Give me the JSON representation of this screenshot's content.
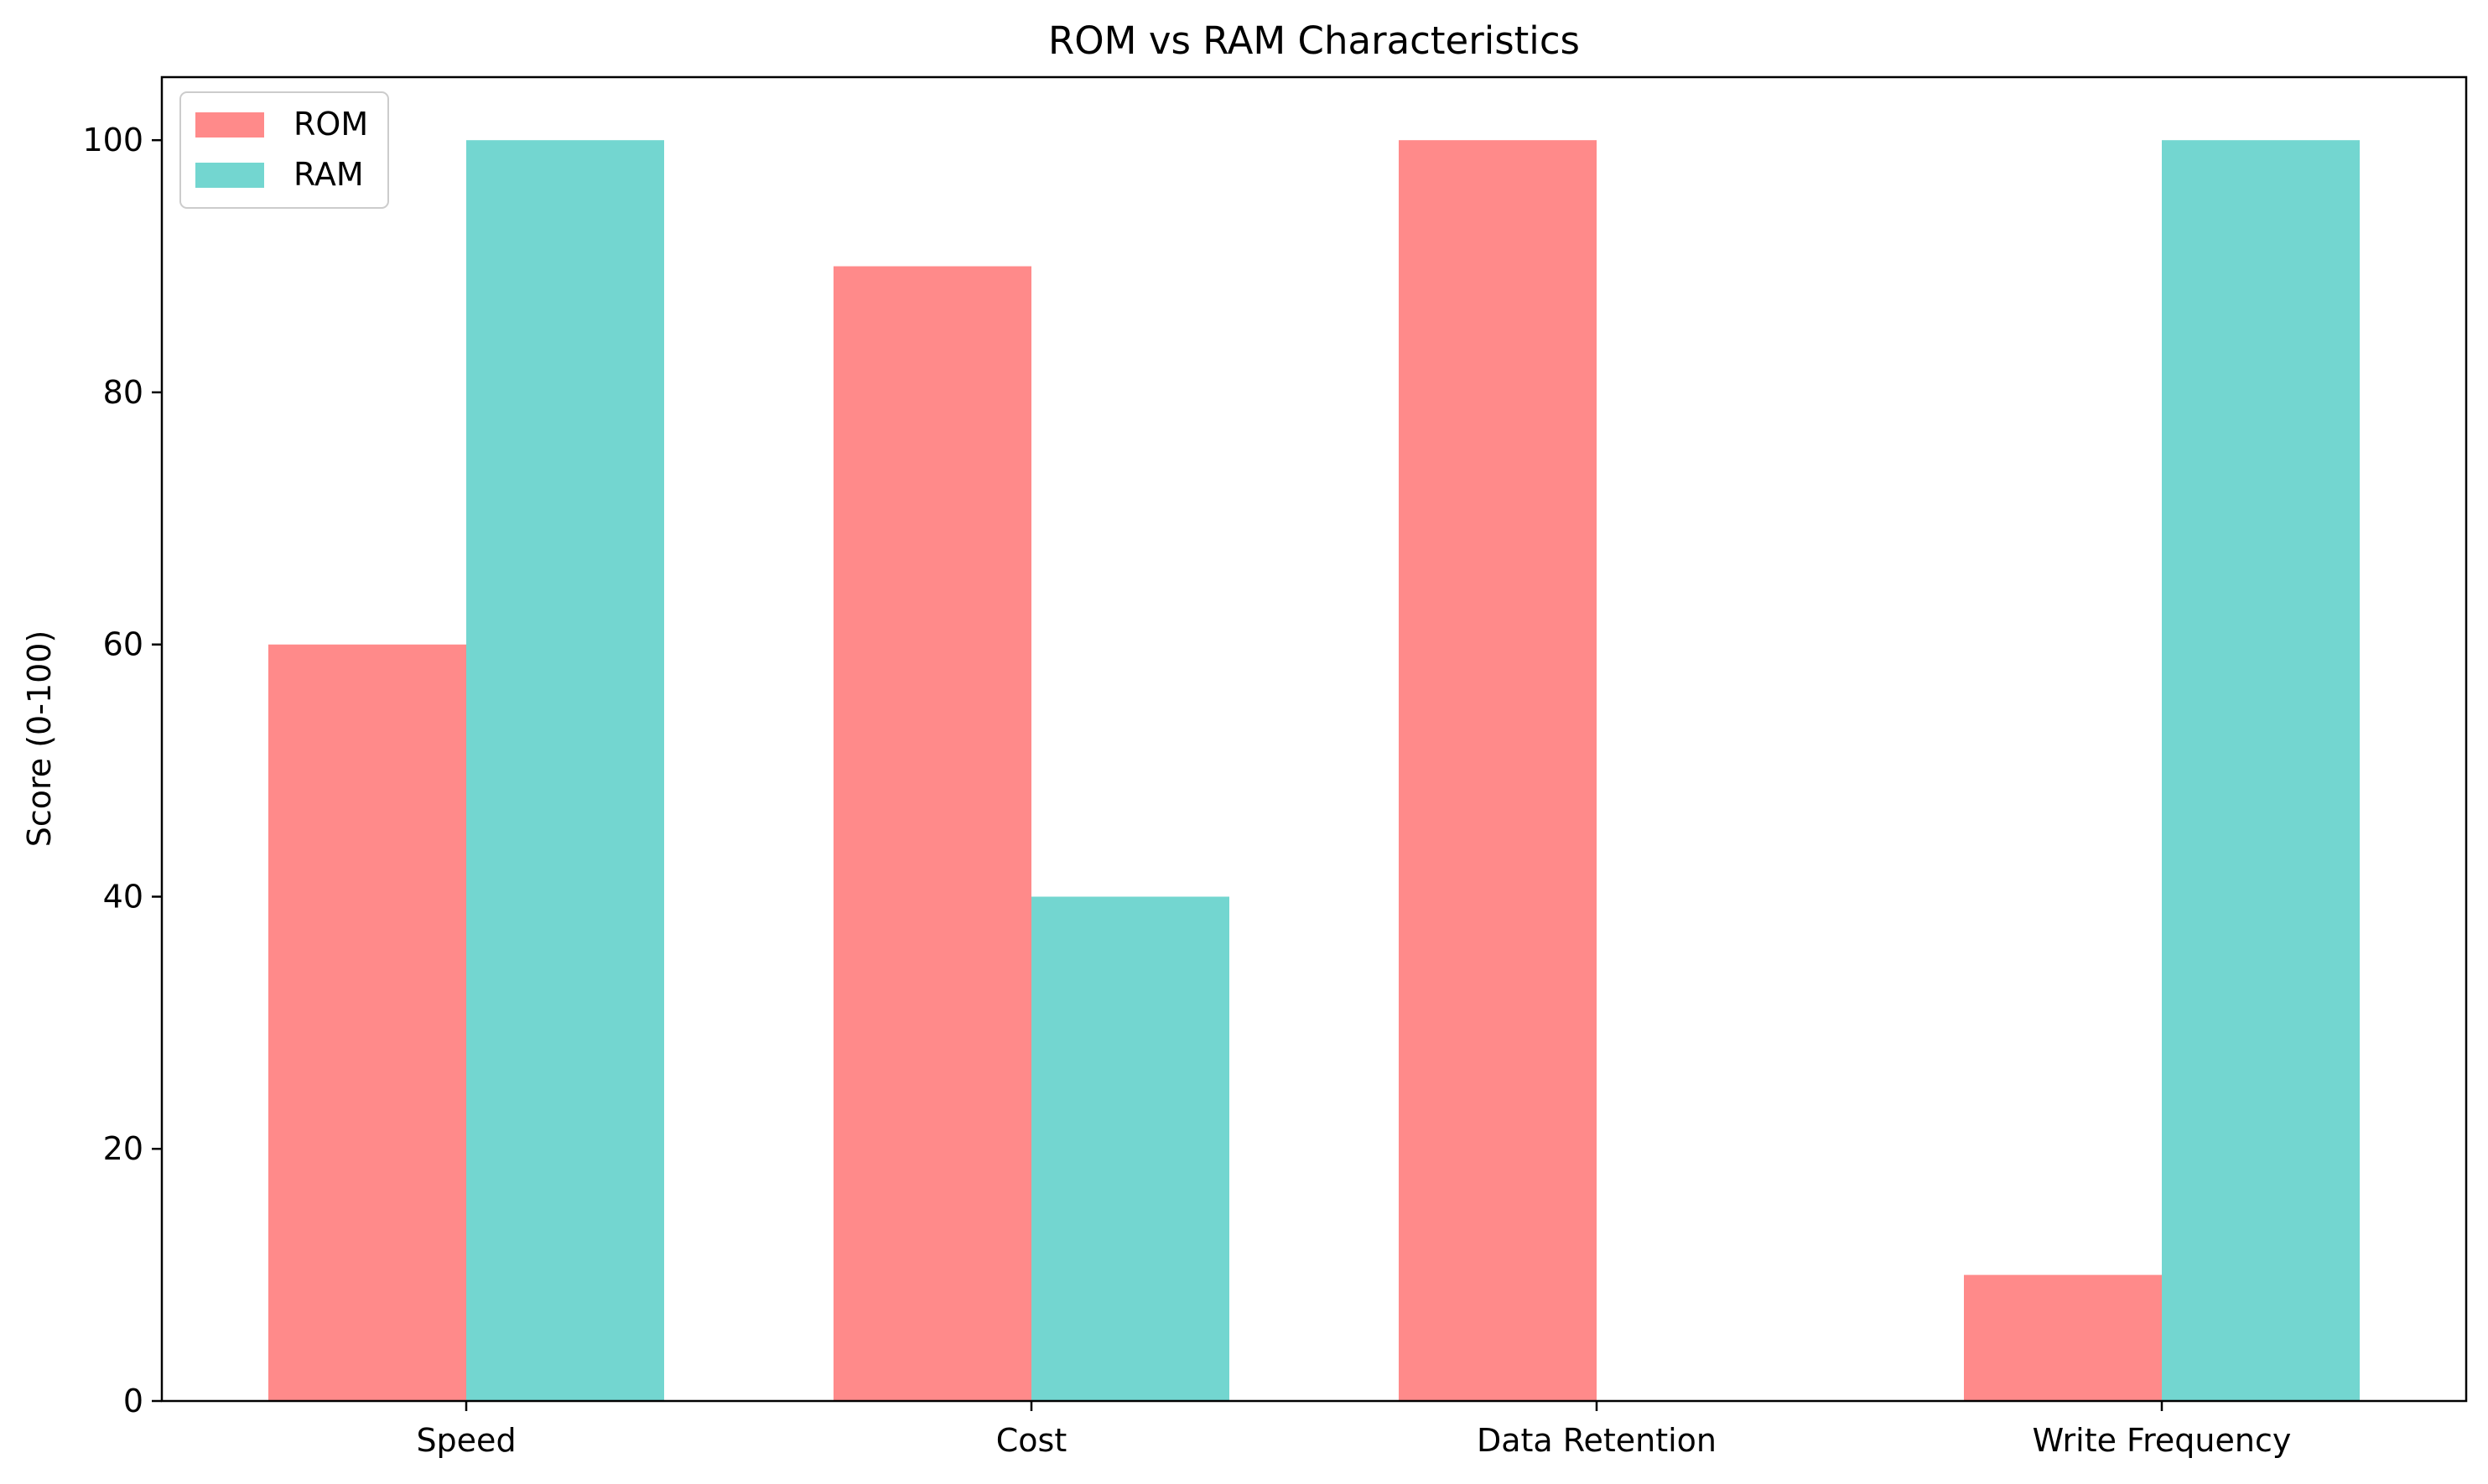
{
  "chart_data": {
    "type": "bar",
    "title": "ROM vs RAM Characteristics",
    "xlabel": "",
    "ylabel": "Score (0-100)",
    "categories": [
      "Speed",
      "Cost",
      "Data Retention",
      "Write Frequency"
    ],
    "series": [
      {
        "name": "ROM",
        "color": "#ff8a8a",
        "values": [
          60,
          90,
          100,
          10
        ]
      },
      {
        "name": "RAM",
        "color": "#73d6d0",
        "values": [
          100,
          40,
          0,
          100
        ]
      }
    ],
    "ylim": [
      0,
      105
    ],
    "yticks": [
      0,
      20,
      40,
      60,
      80,
      100
    ],
    "grid": false,
    "legend_position": "top-left"
  }
}
